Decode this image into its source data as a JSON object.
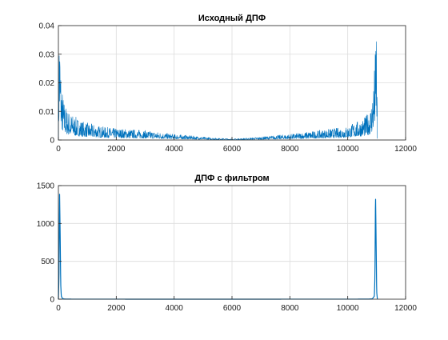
{
  "colors": {
    "series": "#0072bd",
    "grid": "#dcdcdc",
    "axis": "#262626"
  },
  "chart_data": [
    {
      "type": "line",
      "title": "Исходный ДПФ",
      "xlabel": "",
      "ylabel": "",
      "xlim": [
        0,
        12000
      ],
      "ylim": [
        0,
        0.04
      ],
      "xticks": [
        0,
        2000,
        4000,
        6000,
        8000,
        10000,
        12000
      ],
      "xtick_labels": [
        "0",
        "2000",
        "4000",
        "6000",
        "8000",
        "10000",
        "12000"
      ],
      "yticks": [
        0,
        0.01,
        0.02,
        0.03,
        0.04
      ],
      "ytick_labels": [
        "0",
        "0.01",
        "0.02",
        "0.03",
        "0.04"
      ],
      "grid": true,
      "series": [
        {
          "x": [
            0,
            30,
            60,
            100,
            150,
            200,
            300,
            400,
            600,
            800,
            1000,
            1500,
            2000,
            2500,
            3000,
            3500,
            4000,
            4500,
            5000,
            5500,
            6000,
            6500,
            7000,
            7500,
            8000,
            8500,
            9000,
            9500,
            10000,
            10200,
            10400,
            10600,
            10700,
            10800,
            10850,
            10900,
            10930,
            10960,
            10980,
            11000,
            11025
          ],
          "y": [
            0.001,
            0.035,
            0.025,
            0.016,
            0.012,
            0.01,
            0.008,
            0.007,
            0.006,
            0.005,
            0.0045,
            0.0035,
            0.003,
            0.0028,
            0.0025,
            0.002,
            0.0015,
            0.0012,
            0.0008,
            0.0005,
            0.0003,
            0.0005,
            0.0008,
            0.0012,
            0.0015,
            0.002,
            0.0025,
            0.003,
            0.0035,
            0.0045,
            0.005,
            0.006,
            0.007,
            0.009,
            0.012,
            0.016,
            0.02,
            0.025,
            0.035,
            0.03,
            0.001
          ]
        }
      ]
    },
    {
      "type": "line",
      "title": "ДПФ с фильтром",
      "xlabel": "",
      "ylabel": "",
      "xlim": [
        0,
        12000
      ],
      "ylim": [
        0,
        1500
      ],
      "xticks": [
        0,
        2000,
        4000,
        6000,
        8000,
        10000,
        12000
      ],
      "xtick_labels": [
        "0",
        "2000",
        "4000",
        "6000",
        "8000",
        "10000",
        "12000"
      ],
      "yticks": [
        0,
        500,
        1000,
        1500
      ],
      "ytick_labels": [
        "0",
        "500",
        "1000",
        "1500"
      ],
      "grid": true,
      "series": [
        {
          "x": [
            0,
            20,
            40,
            60,
            80,
            100,
            140,
            200,
            300,
            1000,
            3000,
            5000,
            7000,
            9000,
            10700,
            10850,
            10920,
            10940,
            10960,
            10980,
            11000,
            11025
          ],
          "y": [
            0,
            300,
            1420,
            900,
            200,
            40,
            10,
            3,
            1,
            0.5,
            0.3,
            0.2,
            0.3,
            0.5,
            1,
            5,
            40,
            300,
            1410,
            800,
            100,
            0
          ]
        }
      ]
    }
  ]
}
